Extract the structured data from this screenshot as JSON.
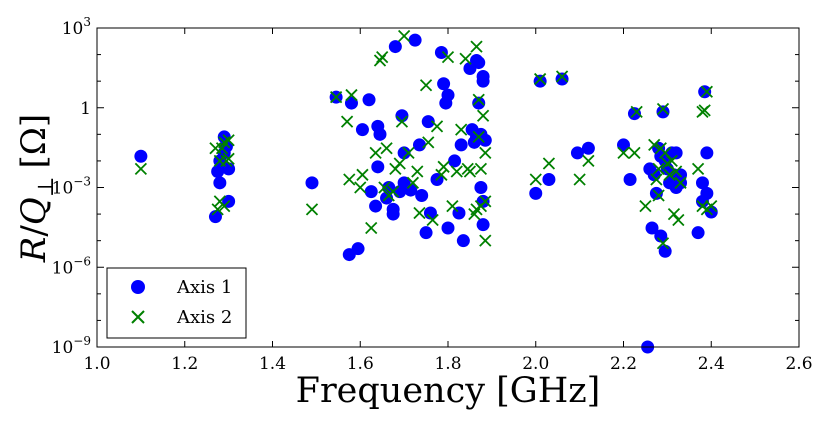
{
  "chart_data": {
    "type": "scatter",
    "title": "",
    "xlabel": "Frequency [GHz]",
    "ylabel": "R/Q_⊥ [Ω]",
    "ylabel_parts": {
      "r": "R",
      "slash": "/",
      "q": "Q",
      "perp": "⊥",
      "unit": "[Ω]"
    },
    "xlim": [
      1.0,
      2.6
    ],
    "ylim": [
      1e-09,
      1000
    ],
    "yscale": "log",
    "x_ticks": [
      {
        "value": 1.0,
        "label": "1.0"
      },
      {
        "value": 1.2,
        "label": "1.2"
      },
      {
        "value": 1.4,
        "label": "1.4"
      },
      {
        "value": 1.6,
        "label": "1.6"
      },
      {
        "value": 1.8,
        "label": "1.8"
      },
      {
        "value": 2.0,
        "label": "2.0"
      },
      {
        "value": 2.2,
        "label": "2.2"
      },
      {
        "value": 2.4,
        "label": "2.4"
      },
      {
        "value": 2.6,
        "label": "2.6"
      }
    ],
    "y_ticks": [
      {
        "value": 1e-09,
        "base": "10",
        "exp": "−9"
      },
      {
        "value": 1e-06,
        "base": "10",
        "exp": "−6"
      },
      {
        "value": 0.001,
        "base": "10",
        "exp": "−3"
      },
      {
        "value": 1,
        "base": "1",
        "exp": ""
      },
      {
        "value": 1000,
        "base": "10",
        "exp": "3"
      }
    ],
    "legend_position": "bottom-left",
    "series": [
      {
        "name": "Axis 1",
        "marker": "circle",
        "color": "#0000ff",
        "points": [
          [
            1.1,
            0.015
          ],
          [
            1.27,
            8e-05
          ],
          [
            1.275,
            0.004
          ],
          [
            1.28,
            0.01
          ],
          [
            1.28,
            0.0015
          ],
          [
            1.285,
            0.006
          ],
          [
            1.29,
            0.08
          ],
          [
            1.29,
            0.02
          ],
          [
            1.295,
            0.035
          ],
          [
            1.3,
            0.005
          ],
          [
            1.3,
            0.0003
          ],
          [
            1.49,
            0.0015
          ],
          [
            1.545,
            2.5
          ],
          [
            1.575,
            3e-06
          ],
          [
            1.58,
            1.5
          ],
          [
            1.595,
            5e-06
          ],
          [
            1.605,
            0.15
          ],
          [
            1.62,
            2
          ],
          [
            1.625,
            0.0007
          ],
          [
            1.635,
            0.0002
          ],
          [
            1.64,
            0.006
          ],
          [
            1.64,
            0.2
          ],
          [
            1.645,
            0.1
          ],
          [
            1.66,
            0.0004
          ],
          [
            1.665,
            0.001
          ],
          [
            1.675,
            0.00015
          ],
          [
            1.675,
            0.0001
          ],
          [
            1.68,
            200
          ],
          [
            1.69,
            0.0007
          ],
          [
            1.695,
            0.5
          ],
          [
            1.7,
            0.02
          ],
          [
            1.7,
            0.0015
          ],
          [
            1.715,
            0.0008
          ],
          [
            1.725,
            350
          ],
          [
            1.735,
            0.04
          ],
          [
            1.74,
            0.0005
          ],
          [
            1.75,
            2e-05
          ],
          [
            1.755,
            0.3
          ],
          [
            1.76,
            0.00011
          ],
          [
            1.775,
            0.002
          ],
          [
            1.785,
            120
          ],
          [
            1.79,
            8
          ],
          [
            1.795,
            1.5
          ],
          [
            1.8,
            3e-05
          ],
          [
            1.8,
            3
          ],
          [
            1.815,
            0.01
          ],
          [
            1.825,
            0.00011
          ],
          [
            1.83,
            0.04
          ],
          [
            1.835,
            1e-05
          ],
          [
            1.85,
            30
          ],
          [
            1.855,
            0.15
          ],
          [
            1.86,
            0.05
          ],
          [
            1.865,
            60
          ],
          [
            1.865,
            0.08
          ],
          [
            1.87,
            1.5
          ],
          [
            1.87,
            50
          ],
          [
            1.875,
            0.1
          ],
          [
            1.875,
            0.001
          ],
          [
            1.88,
            15
          ],
          [
            1.88,
            10
          ],
          [
            1.88,
            0.0003
          ],
          [
            1.88,
            4e-05
          ],
          [
            1.885,
            0.06
          ],
          [
            2.0,
            0.0006
          ],
          [
            2.01,
            10
          ],
          [
            2.03,
            0.002
          ],
          [
            2.06,
            12
          ],
          [
            2.095,
            0.02
          ],
          [
            2.12,
            0.03
          ],
          [
            2.2,
            0.04
          ],
          [
            2.215,
            0.002
          ],
          [
            2.225,
            0.6
          ],
          [
            2.255,
            1e-09
          ],
          [
            2.26,
            0.005
          ],
          [
            2.265,
            3e-05
          ],
          [
            2.27,
            0.003
          ],
          [
            2.275,
            0.0006
          ],
          [
            2.28,
            0.03
          ],
          [
            2.285,
            0.015
          ],
          [
            2.285,
            1.5e-05
          ],
          [
            2.29,
            0.7
          ],
          [
            2.295,
            0.01
          ],
          [
            2.295,
            4e-06
          ],
          [
            2.3,
            0.005
          ],
          [
            2.305,
            0.0015
          ],
          [
            2.31,
            0.02
          ],
          [
            2.315,
            0.003
          ],
          [
            2.32,
            0.02
          ],
          [
            2.32,
            0.001
          ],
          [
            2.33,
            0.003
          ],
          [
            2.33,
            0.0015
          ],
          [
            2.37,
            2e-05
          ],
          [
            2.38,
            0.0015
          ],
          [
            2.38,
            0.0003
          ],
          [
            2.385,
            4
          ],
          [
            2.39,
            0.02
          ],
          [
            2.39,
            0.0006
          ],
          [
            2.4,
            0.00012
          ]
        ]
      },
      {
        "name": "Axis 2",
        "marker": "x",
        "color": "#008000",
        "points": [
          [
            1.1,
            0.005
          ],
          [
            1.27,
            0.03
          ],
          [
            1.275,
            0.00015
          ],
          [
            1.28,
            0.01
          ],
          [
            1.28,
            0.0003
          ],
          [
            1.285,
            0.03
          ],
          [
            1.29,
            0.05
          ],
          [
            1.29,
            0.0002
          ],
          [
            1.295,
            0.01
          ],
          [
            1.3,
            0.06
          ],
          [
            1.3,
            0.012
          ],
          [
            1.49,
            0.00015
          ],
          [
            1.545,
            2.5
          ],
          [
            1.57,
            0.3
          ],
          [
            1.575,
            0.002
          ],
          [
            1.58,
            3
          ],
          [
            1.6,
            0.001
          ],
          [
            1.605,
            0.003
          ],
          [
            1.625,
            3e-05
          ],
          [
            1.635,
            0.02
          ],
          [
            1.645,
            60
          ],
          [
            1.65,
            80
          ],
          [
            1.655,
            0.001
          ],
          [
            1.66,
            0.03
          ],
          [
            1.665,
            0.0005
          ],
          [
            1.675,
            0.0007
          ],
          [
            1.68,
            0.005
          ],
          [
            1.69,
            0.008
          ],
          [
            1.695,
            0.3
          ],
          [
            1.7,
            500
          ],
          [
            1.71,
            0.02
          ],
          [
            1.72,
            0.0015
          ],
          [
            1.73,
            0.004
          ],
          [
            1.735,
            0.00011
          ],
          [
            1.75,
            7
          ],
          [
            1.755,
            0.05
          ],
          [
            1.765,
            6e-05
          ],
          [
            1.775,
            0.2
          ],
          [
            1.785,
            0.003
          ],
          [
            1.79,
            0.006
          ],
          [
            1.8,
            80
          ],
          [
            1.81,
            0.0002
          ],
          [
            1.82,
            0.004
          ],
          [
            1.83,
            0.15
          ],
          [
            1.84,
            70
          ],
          [
            1.845,
            0.005
          ],
          [
            1.85,
            0.004
          ],
          [
            1.86,
            0.0001
          ],
          [
            1.865,
            200
          ],
          [
            1.865,
            0.00015
          ],
          [
            1.87,
            0.08
          ],
          [
            1.87,
            2
          ],
          [
            1.875,
            0.005
          ],
          [
            1.875,
            0.0002
          ],
          [
            1.88,
            0.5
          ],
          [
            1.885,
            0.02
          ],
          [
            1.885,
            1e-05
          ],
          [
            1.885,
            0.0003
          ],
          [
            2.0,
            0.002
          ],
          [
            2.01,
            12
          ],
          [
            2.03,
            0.008
          ],
          [
            2.06,
            15
          ],
          [
            2.1,
            0.002
          ],
          [
            2.12,
            0.01
          ],
          [
            2.2,
            0.02
          ],
          [
            2.225,
            0.02
          ],
          [
            2.23,
            0.7
          ],
          [
            2.25,
            0.0002
          ],
          [
            2.27,
            0.04
          ],
          [
            2.275,
            0.002
          ],
          [
            2.28,
            0.005
          ],
          [
            2.28,
            0.0005
          ],
          [
            2.285,
            0.03
          ],
          [
            2.29,
            0.9
          ],
          [
            2.29,
            8e-06
          ],
          [
            2.295,
            0.02
          ],
          [
            2.3,
            0.008
          ],
          [
            2.305,
            0.003
          ],
          [
            2.31,
            0.01
          ],
          [
            2.315,
            0.0001
          ],
          [
            2.32,
            0.004
          ],
          [
            2.325,
            6e-05
          ],
          [
            2.33,
            0.0015
          ],
          [
            2.37,
            0.005
          ],
          [
            2.38,
            0.7
          ],
          [
            2.38,
            0.0002
          ],
          [
            2.385,
            0.8
          ],
          [
            2.39,
            4
          ],
          [
            2.39,
            0.00015
          ],
          [
            2.4,
            0.0002
          ]
        ]
      }
    ]
  }
}
